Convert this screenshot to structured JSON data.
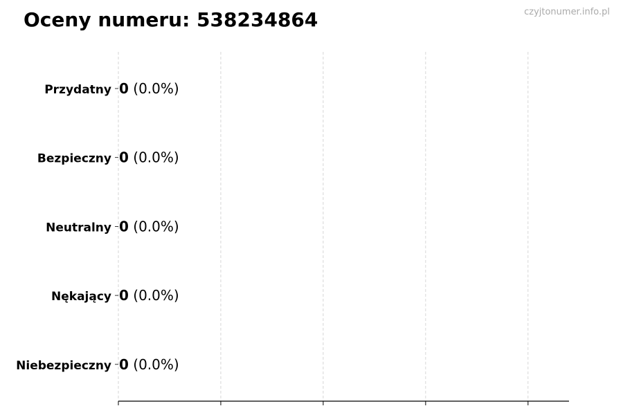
{
  "title": "Oceny numeru: 538234864",
  "watermark": "czyjtonumer.info.pl",
  "chart_data": {
    "type": "bar",
    "orientation": "horizontal",
    "categories": [
      "Przydatny",
      "Bezpieczny",
      "Neutralny",
      "Nękający",
      "Niebezpieczny"
    ],
    "values": [
      0,
      0,
      0,
      0,
      0
    ],
    "labels": [
      {
        "count": "0",
        "pct": "(0.0%)"
      },
      {
        "count": "0",
        "pct": "(0.0%)"
      },
      {
        "count": "0",
        "pct": "(0.0%)"
      },
      {
        "count": "0",
        "pct": "(0.0%)"
      },
      {
        "count": "0",
        "pct": "(0.0%)"
      }
    ],
    "xlim": [
      0,
      4.4
    ],
    "xticks": [
      0,
      1,
      2,
      3,
      4
    ],
    "xtick_labels_shown": false,
    "grid": "x-dashed",
    "colors": {
      "bar_edge": "#000000",
      "grid": "#cccccc"
    }
  }
}
